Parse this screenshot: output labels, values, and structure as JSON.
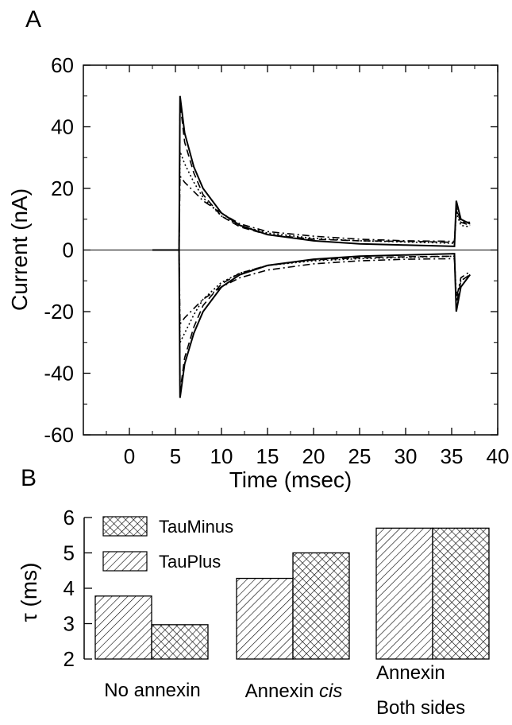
{
  "chart_data": [
    {
      "panel": "A",
      "type": "line",
      "xlabel": "Time (msec)",
      "ylabel": "Current (nA)",
      "xlim": [
        -5,
        40
      ],
      "ylim": [
        -60,
        60
      ],
      "xticks": [
        0,
        5,
        10,
        15,
        20,
        25,
        30,
        35,
        40
      ],
      "yticks": [
        -60,
        -40,
        -20,
        0,
        20,
        40,
        60
      ],
      "grid": false,
      "pulse_window_ms": [
        5.5,
        35.5
      ],
      "series": [
        {
          "style": "solid",
          "x": [
            2.5,
            5.4,
            5.5,
            6,
            7,
            8,
            10,
            12,
            15,
            20,
            25,
            30,
            35.3,
            35.5,
            36,
            37
          ],
          "y": [
            0,
            0,
            50,
            38,
            27,
            20,
            12,
            8,
            5,
            3,
            2,
            1.6,
            1.2,
            16,
            10,
            8.5
          ]
        },
        {
          "style": "dashed",
          "x": [
            2.5,
            5.4,
            5.5,
            6,
            7,
            8,
            10,
            12,
            15,
            20,
            25,
            30,
            35.3,
            35.5,
            36,
            37
          ],
          "y": [
            0,
            0,
            48,
            35,
            25,
            18,
            11,
            7.5,
            5,
            3.5,
            3,
            2.8,
            2.5,
            14,
            9,
            9
          ]
        },
        {
          "style": "dotted",
          "x": [
            2.5,
            5.4,
            5.5,
            6,
            7,
            8,
            10,
            12,
            15,
            20,
            25,
            30,
            35.3,
            35.5,
            36,
            37
          ],
          "y": [
            0,
            0,
            32,
            28,
            22,
            17,
            11,
            8,
            5.5,
            3.8,
            3,
            2.6,
            2.2,
            12,
            8,
            7.5
          ]
        },
        {
          "style": "dashdot",
          "x": [
            2.5,
            5.4,
            5.5,
            6,
            7,
            8,
            10,
            12,
            15,
            20,
            25,
            30,
            35.3,
            35.5,
            36,
            37
          ],
          "y": [
            0,
            0,
            24,
            22,
            19,
            16,
            12,
            8.5,
            6,
            4.5,
            3.5,
            3,
            2.8,
            13,
            9,
            8
          ]
        },
        {
          "style": "solid",
          "x": [
            2.5,
            5.4,
            5.5,
            6,
            7,
            8,
            10,
            12,
            15,
            20,
            25,
            30,
            35.3,
            35.5,
            36,
            37
          ],
          "y": [
            0,
            0,
            -48,
            -37,
            -27,
            -20,
            -12,
            -8,
            -5,
            -3,
            -2,
            -1.6,
            -1.2,
            -20,
            -12,
            -8
          ]
        },
        {
          "style": "dashed",
          "x": [
            2.5,
            5.4,
            5.5,
            6,
            7,
            8,
            10,
            12,
            15,
            20,
            25,
            30,
            35.3,
            35.5,
            36,
            37
          ],
          "y": [
            0,
            0,
            -46,
            -35,
            -25,
            -18,
            -11,
            -7.5,
            -5,
            -3.2,
            -2.5,
            -2.2,
            -2,
            -18,
            -10,
            -8
          ]
        },
        {
          "style": "dotted",
          "x": [
            2.5,
            5.4,
            5.5,
            6,
            7,
            8,
            10,
            12,
            15,
            20,
            25,
            30,
            35.3,
            35.5,
            36,
            37
          ],
          "y": [
            0,
            0,
            -30,
            -27,
            -21,
            -16,
            -10.5,
            -7.5,
            -5,
            -3.5,
            -2.8,
            -2.4,
            -2,
            -15,
            -10,
            -8
          ]
        },
        {
          "style": "dashdot",
          "x": [
            2.5,
            5.4,
            5.5,
            6,
            7,
            8,
            10,
            12,
            15,
            20,
            25,
            30,
            35.3,
            35.5,
            36,
            37
          ],
          "y": [
            0,
            0,
            -24,
            -22,
            -19,
            -16,
            -12,
            -9,
            -6.5,
            -4.5,
            -3.5,
            -3,
            -2.8,
            -16,
            -9,
            -7
          ]
        }
      ]
    },
    {
      "panel": "B",
      "type": "bar",
      "ylabel": "τ (ms)",
      "ylim": [
        2,
        6
      ],
      "yticks": [
        2,
        3,
        4,
        5,
        6
      ],
      "legend_position": "top-left",
      "categories": [
        "No annexin",
        "Annexin cis",
        "Annexin\nBoth sides"
      ],
      "series": [
        {
          "name": "TauPlus",
          "pattern": "diagonal-hatch",
          "values": [
            3.78,
            4.28,
            5.7
          ]
        },
        {
          "name": "TauMinus",
          "pattern": "cross-hatch",
          "values": [
            2.97,
            5.0,
            5.7
          ]
        }
      ]
    }
  ]
}
